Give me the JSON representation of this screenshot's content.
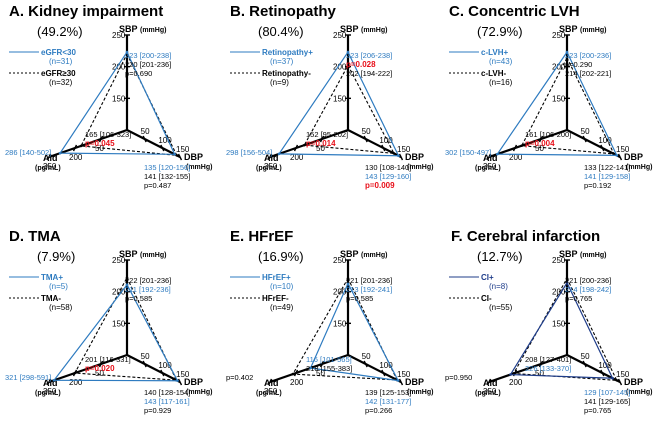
{
  "colors": {
    "group1": "#2E7BC0",
    "group2": "#000000",
    "pvalue_significant": "#E8101A",
    "axis": "#000000"
  },
  "axes_labels": {
    "sbp": "SBP",
    "sbp_unit": "(mmHg)",
    "dbp": "DBP",
    "dbp_unit": "(mmHg)",
    "ald": "Ald",
    "ald_unit": "(pg/mL)"
  },
  "chart_data": [
    {
      "type": "radar",
      "title": "A. Kidney impairment",
      "percent": "(49.2%)",
      "legend": [
        {
          "label": "eGFR<30",
          "n": "(n=31)",
          "style": "solid",
          "color": "#2E7BC0"
        },
        {
          "label": "eGFR≥30",
          "n": "(n=32)",
          "style": "dashed",
          "color": "#000000"
        }
      ],
      "axes": {
        "sbp": {
          "ticks": [
            150,
            200,
            250
          ],
          "min": 100,
          "max": 250
        },
        "dbp": {
          "ticks": [
            50,
            100,
            150
          ],
          "min": 0,
          "max": 150
        },
        "ald": {
          "ticks": [
            50,
            200,
            350
          ],
          "min": -100,
          "max": 350
        }
      },
      "series": [
        {
          "name": "eGFR<30",
          "sbp": 223,
          "dbp": 135,
          "ald": 286,
          "color": "#2E7BC0",
          "style": "solid"
        },
        {
          "name": "eGFR≥30",
          "sbp": 220,
          "dbp": 141,
          "ald": 165,
          "color": "#000000",
          "style": "dashed"
        }
      ],
      "annotations": {
        "sbp": [
          {
            "text": "223 [200-238]",
            "color": "#2E7BC0",
            "bold": false
          },
          {
            "text": "220 [201-236]",
            "color": "#000000",
            "bold": false
          },
          {
            "text": "p=0.690",
            "color": "#000000",
            "bold": false
          }
        ],
        "ald": [
          {
            "text": "165 [106-323]",
            "color": "#000000",
            "bold": false
          },
          {
            "text": "p=0.045",
            "color": "#E8101A",
            "bold": true
          },
          {
            "text": "286 [140-502]",
            "color": "#2E7BC0",
            "bold": false
          }
        ],
        "dbp": [
          {
            "text": "135 [120-156]",
            "color": "#2E7BC0",
            "bold": false
          },
          {
            "text": "141 [132-155]",
            "color": "#000000",
            "bold": false
          },
          {
            "text": "p=0.487",
            "color": "#000000",
            "bold": false
          }
        ]
      }
    },
    {
      "type": "radar",
      "title": "B. Retinopathy",
      "percent": "(80.4%)",
      "legend": [
        {
          "label": "Retinopathy+",
          "n": "(n=37)",
          "style": "solid",
          "color": "#2E7BC0"
        },
        {
          "label": "Retinopathy-",
          "n": "(n=9)",
          "style": "dashed",
          "color": "#000000"
        }
      ],
      "axes": {
        "sbp": {
          "ticks": [
            150,
            200,
            250
          ],
          "min": 100,
          "max": 250
        },
        "dbp": {
          "ticks": [
            50,
            100,
            150
          ],
          "min": 0,
          "max": 150
        },
        "ald": {
          "ticks": [
            50,
            200,
            350
          ],
          "min": -100,
          "max": 350
        }
      },
      "series": [
        {
          "name": "Retinopathy+",
          "sbp": 223,
          "dbp": 143,
          "ald": 298,
          "color": "#2E7BC0",
          "style": "solid"
        },
        {
          "name": "Retinopathy-",
          "sbp": 202,
          "dbp": 130,
          "ald": 152,
          "color": "#000000",
          "style": "dashed"
        }
      ],
      "annotations": {
        "sbp": [
          {
            "text": "223 [206-238]",
            "color": "#2E7BC0",
            "bold": false
          },
          {
            "text": "p=0.028",
            "color": "#E8101A",
            "bold": true
          },
          {
            "text": "202 [194-222]",
            "color": "#000000",
            "bold": false
          }
        ],
        "ald": [
          {
            "text": "152 [95-202]",
            "color": "#000000",
            "bold": false
          },
          {
            "text": "p=0.014",
            "color": "#E8101A",
            "bold": true
          },
          {
            "text": "298 [156-504]",
            "color": "#2E7BC0",
            "bold": false
          }
        ],
        "dbp": [
          {
            "text": "130 [108-140]",
            "color": "#000000",
            "bold": false
          },
          {
            "text": "143 [129-160]",
            "color": "#2E7BC0",
            "bold": false
          },
          {
            "text": "p=0.009",
            "color": "#E8101A",
            "bold": true
          }
        ]
      }
    },
    {
      "type": "radar",
      "title": "C. Concentric LVH",
      "percent": "(72.9%)",
      "legend": [
        {
          "label": "c-LVH+",
          "n": "(n=43)",
          "style": "solid",
          "color": "#2E7BC0"
        },
        {
          "label": "c-LVH-",
          "n": "(n=16)",
          "style": "dashed",
          "color": "#000000"
        }
      ],
      "axes": {
        "sbp": {
          "ticks": [
            150,
            200,
            250
          ],
          "min": 100,
          "max": 250
        },
        "dbp": {
          "ticks": [
            50,
            100,
            150
          ],
          "min": 0,
          "max": 150
        },
        "ald": {
          "ticks": [
            50,
            200,
            350
          ],
          "min": -100,
          "max": 350
        }
      },
      "series": [
        {
          "name": "c-LVH+",
          "sbp": 223,
          "dbp": 141,
          "ald": 302,
          "color": "#2E7BC0",
          "style": "solid"
        },
        {
          "name": "c-LVH-",
          "sbp": 214,
          "dbp": 133,
          "ald": 161,
          "color": "#000000",
          "style": "dashed"
        }
      ],
      "annotations": {
        "sbp": [
          {
            "text": "223 [200-236]",
            "color": "#2E7BC0",
            "bold": false
          },
          {
            "text": "p=0.290",
            "color": "#000000",
            "bold": false
          },
          {
            "text": "214 [202-221]",
            "color": "#000000",
            "bold": false
          }
        ],
        "ald": [
          {
            "text": "161 [106-200]",
            "color": "#000000",
            "bold": false
          },
          {
            "text": "p=0.004",
            "color": "#E8101A",
            "bold": true
          },
          {
            "text": "302 [150-497]",
            "color": "#2E7BC0",
            "bold": false
          }
        ],
        "dbp": [
          {
            "text": "133 [122-141]",
            "color": "#000000",
            "bold": false
          },
          {
            "text": "141 [129-158]",
            "color": "#2E7BC0",
            "bold": false
          },
          {
            "text": "p=0.192",
            "color": "#000000",
            "bold": false
          }
        ]
      }
    },
    {
      "type": "radar",
      "title": "D. TMA",
      "percent": "(7.9%)",
      "legend": [
        {
          "label": "TMA+",
          "n": "(n=5)",
          "style": "solid",
          "color": "#2E7BC0"
        },
        {
          "label": "TMA-",
          "n": "(n=58)",
          "style": "dashed",
          "color": "#000000"
        }
      ],
      "axes": {
        "sbp": {
          "ticks": [
            150,
            200,
            250
          ],
          "min": 100,
          "max": 250
        },
        "dbp": {
          "ticks": [
            50,
            100,
            150
          ],
          "min": 0,
          "max": 150
        },
        "ald": {
          "ticks": [
            50,
            200,
            350
          ],
          "min": -100,
          "max": 350
        }
      },
      "series": [
        {
          "name": "TMA+",
          "sbp": 211,
          "dbp": 143,
          "ald": 321,
          "color": "#2E7BC0",
          "style": "solid"
        },
        {
          "name": "TMA-",
          "sbp": 222,
          "dbp": 140,
          "ald": 201,
          "color": "#000000",
          "style": "dashed"
        }
      ],
      "annotations": {
        "sbp": [
          {
            "text": "222 [201-236]",
            "color": "#000000",
            "bold": false
          },
          {
            "text": "211 [192-236]",
            "color": "#2E7BC0",
            "bold": false
          },
          {
            "text": "p=0.585",
            "color": "#000000",
            "bold": false
          }
        ],
        "ald": [
          {
            "text": "201 [116-331]",
            "color": "#000000",
            "bold": false
          },
          {
            "text": "p=0.020",
            "color": "#E8101A",
            "bold": true
          },
          {
            "text": "321 [298-591]",
            "color": "#2E7BC0",
            "bold": false
          }
        ],
        "dbp": [
          {
            "text": "140 [128-154]",
            "color": "#000000",
            "bold": false
          },
          {
            "text": "143 [117-161]",
            "color": "#2E7BC0",
            "bold": false
          },
          {
            "text": "p=0.929",
            "color": "#000000",
            "bold": false
          }
        ]
      }
    },
    {
      "type": "radar",
      "title": "E. HFrEF",
      "percent": "(16.9%)",
      "legend": [
        {
          "label": "HFrEF+",
          "n": "(n=10)",
          "style": "solid",
          "color": "#2E7BC0"
        },
        {
          "label": "HFrEF-",
          "n": "(n=49)",
          "style": "dashed",
          "color": "#000000"
        }
      ],
      "axes": {
        "sbp": {
          "ticks": [
            150,
            200,
            250
          ],
          "min": 100,
          "max": 250
        },
        "dbp": {
          "ticks": [
            50,
            100,
            150
          ],
          "min": 0,
          "max": 150
        },
        "ald": {
          "ticks": [
            50,
            200,
            350
          ],
          "min": -100,
          "max": 350
        }
      },
      "series": [
        {
          "name": "HFrEF+",
          "sbp": 213,
          "dbp": 142,
          "ald": 116,
          "color": "#2E7BC0",
          "style": "solid"
        },
        {
          "name": "HFrEF-",
          "sbp": 221,
          "dbp": 139,
          "ald": 218,
          "color": "#000000",
          "style": "dashed"
        }
      ],
      "annotations": {
        "sbp": [
          {
            "text": "221 [201-236]",
            "color": "#000000",
            "bold": false
          },
          {
            "text": "213 [192-241]",
            "color": "#2E7BC0",
            "bold": false
          },
          {
            "text": "p=0.585",
            "color": "#000000",
            "bold": false
          }
        ],
        "ald": [
          {
            "text": "116 [101-565]",
            "color": "#2E7BC0",
            "bold": false
          },
          {
            "text": "218 [155-383]",
            "color": "#000000",
            "bold": false
          },
          {
            "text": "p=0.402",
            "color": "#000000",
            "bold": false
          }
        ],
        "dbp": [
          {
            "text": "139 [125-153]",
            "color": "#000000",
            "bold": false
          },
          {
            "text": "142 [131-177]",
            "color": "#2E7BC0",
            "bold": false
          },
          {
            "text": "p=0.266",
            "color": "#000000",
            "bold": false
          }
        ]
      }
    },
    {
      "type": "radar",
      "title": "F. Cerebral infarction",
      "percent": "(12.7%)",
      "legend": [
        {
          "label": "CI+",
          "n": "(n=8)",
          "style": "solid",
          "color": "#1F3D8A"
        },
        {
          "label": "CI-",
          "n": "(n=55)",
          "style": "dashed",
          "color": "#000000"
        }
      ],
      "axes": {
        "sbp": {
          "ticks": [
            150,
            200,
            250
          ],
          "min": 100,
          "max": 250
        },
        "dbp": {
          "ticks": [
            50,
            100,
            150
          ],
          "min": 0,
          "max": 150
        },
        "ald": {
          "ticks": [
            50,
            200,
            350
          ],
          "min": -100,
          "max": 350
        }
      },
      "series": [
        {
          "name": "CI+",
          "sbp": 214,
          "dbp": 129,
          "ald": 226,
          "color": "#1F3D8A",
          "style": "solid"
        },
        {
          "name": "CI-",
          "sbp": 221,
          "dbp": 141,
          "ald": 208,
          "color": "#000000",
          "style": "dashed"
        }
      ],
      "annotations": {
        "sbp": [
          {
            "text": "221 [200-236]",
            "color": "#000000",
            "bold": false
          },
          {
            "text": "214 [198-242]",
            "color": "#2E7BC0",
            "bold": false
          },
          {
            "text": "p=0.765",
            "color": "#000000",
            "bold": false
          }
        ],
        "ald": [
          {
            "text": "208 [127-401]",
            "color": "#000000",
            "bold": false
          },
          {
            "text": "226 [133-370]",
            "color": "#2E7BC0",
            "bold": false
          },
          {
            "text": "p=0.950",
            "color": "#000000",
            "bold": false
          }
        ],
        "dbp": [
          {
            "text": "129 [107-145]",
            "color": "#2E7BC0",
            "bold": false
          },
          {
            "text": "141 [129-165]",
            "color": "#000000",
            "bold": false
          },
          {
            "text": "p=0.765",
            "color": "#000000",
            "bold": false
          }
        ]
      }
    }
  ]
}
